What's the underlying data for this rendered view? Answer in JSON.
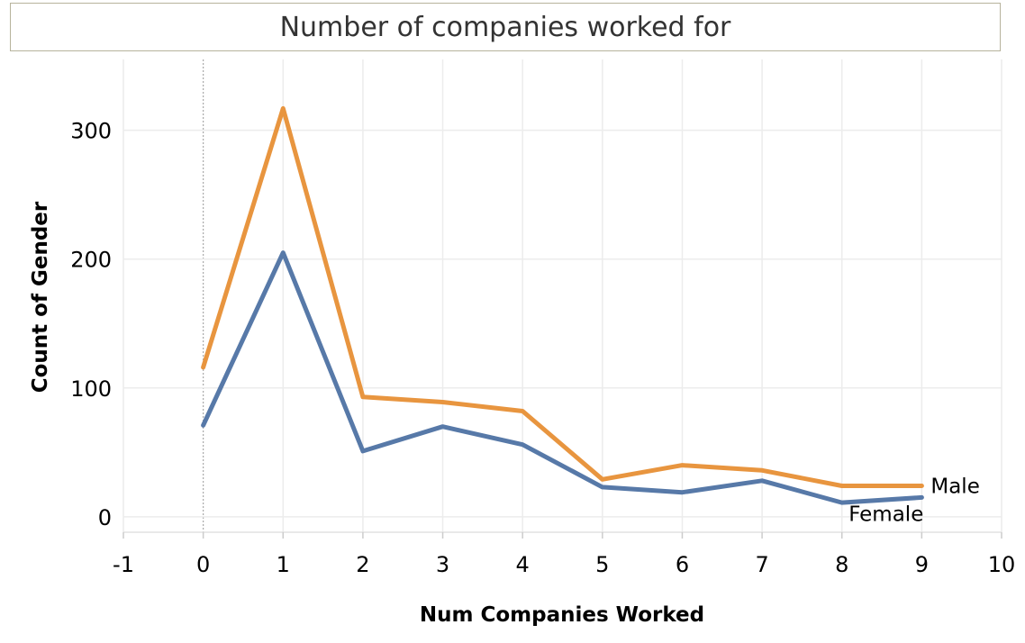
{
  "chart_data": {
    "type": "line",
    "title": "Number of companies worked for",
    "xlabel": "Num Companies Worked",
    "ylabel": "Count of Gender",
    "xlim": [
      -1,
      10
    ],
    "ylim": [
      -12,
      355
    ],
    "x_ticks": [
      -1,
      0,
      1,
      2,
      3,
      4,
      5,
      6,
      7,
      8,
      9,
      10
    ],
    "y_ticks": [
      0,
      100,
      200,
      300
    ],
    "grid": true,
    "legend": "inline labels at line ends",
    "x": [
      0,
      1,
      2,
      3,
      4,
      5,
      6,
      7,
      8,
      9
    ],
    "series": [
      {
        "name": "Male",
        "color": "#E8953F",
        "values": [
          116,
          317,
          93,
          89,
          82,
          29,
          40,
          36,
          24,
          24
        ]
      },
      {
        "name": "Female",
        "color": "#5779A8",
        "values": [
          71,
          205,
          51,
          70,
          56,
          23,
          19,
          28,
          11,
          15
        ]
      }
    ]
  }
}
